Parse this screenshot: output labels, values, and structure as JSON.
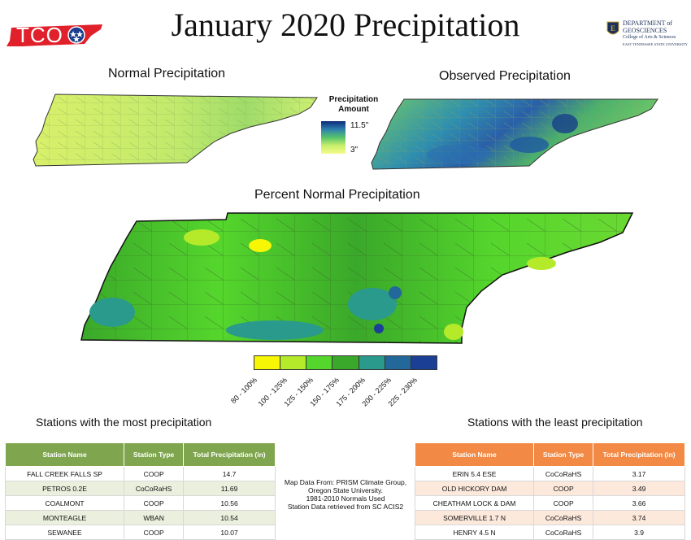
{
  "title": "January 2020 Precipitation",
  "logos": {
    "left_text": "TCO",
    "right_lines": [
      "DEPARTMENT of",
      "GEOSCIENCES",
      "College of Arts & Sciences",
      "EAST TENNESSEE STATE UNIVERSITY"
    ]
  },
  "maps": {
    "normal_title": "Normal Precipitation",
    "observed_title": "Observed Precipitation",
    "percent_title": "Percent Normal Precipitation"
  },
  "amount_legend": {
    "title_line1": "Precipitation",
    "title_line2": "Amount",
    "max_label": "11.5\"",
    "min_label": "3\"",
    "colors": [
      "#0c2a7a",
      "#2e7fae",
      "#56c46a",
      "#c8ef6a",
      "#f4fb8c"
    ]
  },
  "percent_legend": {
    "classes": [
      {
        "label": "80 - 100%",
        "color": "#f7f705"
      },
      {
        "label": "100 - 125%",
        "color": "#b5ea2a"
      },
      {
        "label": "125 - 150%",
        "color": "#55d62c"
      },
      {
        "label": "150 - 175%",
        "color": "#3aa82a"
      },
      {
        "label": "175 - 200%",
        "color": "#2a9a8c"
      },
      {
        "label": "200 - 225%",
        "color": "#22689a"
      },
      {
        "label": "225 - 230%",
        "color": "#1c3f96"
      }
    ]
  },
  "most_table": {
    "heading": "Stations with the most precipitation",
    "headers": [
      "Station Name",
      "Station Type",
      "Total Precipitation (in)"
    ],
    "rows": [
      [
        "FALL CREEK FALLS SP",
        "COOP",
        "14.7"
      ],
      [
        "PETROS 0.2E",
        "CoCoRaHS",
        "11.69"
      ],
      [
        "COALMONT",
        "COOP",
        "10.56"
      ],
      [
        "MONTEAGLE",
        "WBAN",
        "10.54"
      ],
      [
        "SEWANEE",
        "COOP",
        "10.07"
      ]
    ]
  },
  "least_table": {
    "heading": "Stations with the least precipitation",
    "headers": [
      "Station Name",
      "Station Type",
      "Total Precipitation (in)"
    ],
    "rows": [
      [
        "ERIN 5.4 ESE",
        "CoCoRaHS",
        "3.17"
      ],
      [
        "OLD HICKORY DAM",
        "COOP",
        "3.49"
      ],
      [
        "CHEATHAM LOCK & DAM",
        "COOP",
        "3.66"
      ],
      [
        "SOMERVILLE 1.7 N",
        "CoCoRaHS",
        "3.74"
      ],
      [
        "HENRY 4.5 N",
        "CoCoRaHS",
        "3.9"
      ]
    ]
  },
  "source_note": [
    "Map Data From: PRISM Climate Group,",
    "Oregon State University.",
    "1981-2010 Normals Used",
    "Station Data retrieved from SC ACIS2"
  ]
}
